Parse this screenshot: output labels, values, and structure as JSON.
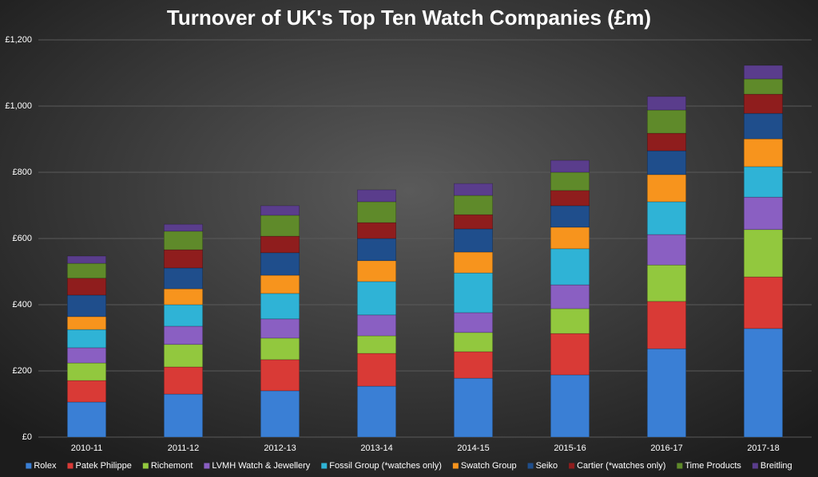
{
  "chart_data": {
    "type": "stacked_bar",
    "title": "Turnover of UK's Top Ten Watch Companies (£m)",
    "categories": [
      "2010-11",
      "2011-12",
      "2012-13",
      "2013-14",
      "2014-15",
      "2015-16",
      "2016-17",
      "2017-18"
    ],
    "series": [
      {
        "name": "Rolex",
        "color": "#3a7fd5",
        "values": [
          106,
          130,
          140,
          154,
          178,
          188,
          267,
          328
        ]
      },
      {
        "name": "Patek Philippe",
        "color": "#d93a36",
        "values": [
          65,
          82,
          94,
          99,
          80,
          125,
          143,
          156
        ]
      },
      {
        "name": "Richemont",
        "color": "#92c83e",
        "values": [
          53,
          68,
          65,
          53,
          58,
          75,
          110,
          143
        ]
      },
      {
        "name": "LVMH Watch & Jewellery",
        "color": "#8a5fc2",
        "values": [
          46,
          55,
          58,
          63,
          60,
          72,
          92,
          98
        ]
      },
      {
        "name": "Fossil Group (*watches only)",
        "color": "#2fb3d6",
        "values": [
          55,
          65,
          77,
          101,
          120,
          109,
          99,
          92
        ]
      },
      {
        "name": "Swatch Group",
        "color": "#f7941d",
        "values": [
          39,
          48,
          55,
          63,
          63,
          65,
          82,
          84
        ]
      },
      {
        "name": "Seiko",
        "color": "#1f4e8c",
        "values": [
          65,
          63,
          68,
          67,
          70,
          65,
          72,
          77
        ]
      },
      {
        "name": "Cartier (*watches only)",
        "color": "#8f1d1d",
        "values": [
          51,
          55,
          50,
          48,
          43,
          46,
          53,
          58
        ]
      },
      {
        "name": "Time Products",
        "color": "#5f8a2a",
        "values": [
          45,
          56,
          63,
          63,
          58,
          55,
          70,
          46
        ]
      },
      {
        "name": "Breitling",
        "color": "#5a3d8c",
        "values": [
          22,
          21,
          29,
          36,
          36,
          36,
          41,
          41
        ]
      }
    ],
    "ylim": [
      0,
      1200
    ],
    "yticks": [
      {
        "value": 0,
        "label": "£0"
      },
      {
        "value": 200,
        "label": "£200"
      },
      {
        "value": 400,
        "label": "£400"
      },
      {
        "value": 600,
        "label": "£600"
      },
      {
        "value": 800,
        "label": "£800"
      },
      {
        "value": 1000,
        "label": "£1,000"
      },
      {
        "value": 1200,
        "label": "£1,200"
      }
    ],
    "grid": true,
    "legend": "bottom"
  }
}
